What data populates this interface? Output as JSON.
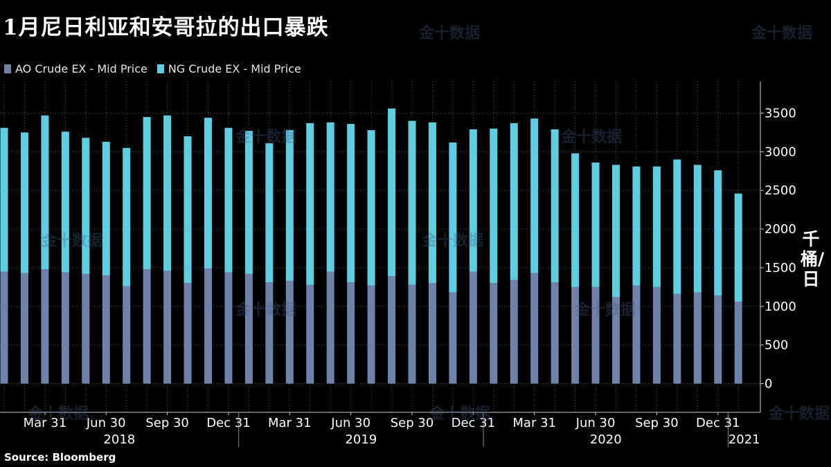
{
  "title": "1月尼日利亚和安哥拉的出口暴跌",
  "source": "Source: Bloomberg",
  "watermark": "金十数据",
  "chart_data": {
    "type": "bar",
    "stacked": true,
    "title": "1月尼日利亚和安哥拉的出口暴跌",
    "ylabel": "千桶/日",
    "ylim": [
      -350,
      3850
    ],
    "yticks": [
      0,
      500,
      1000,
      1500,
      2000,
      2500,
      3000,
      3500
    ],
    "grid": true,
    "legend_position": "top-left",
    "x_tick_labels": [
      {
        "label": "Mar 31",
        "index": 2
      },
      {
        "label": "Jun 30",
        "index": 5
      },
      {
        "label": "Sep 30",
        "index": 8
      },
      {
        "label": "Dec 31",
        "index": 11
      },
      {
        "label": "Mar 31",
        "index": 14
      },
      {
        "label": "Jun 30",
        "index": 17
      },
      {
        "label": "Sep 30",
        "index": 20
      },
      {
        "label": "Dec 31",
        "index": 23
      },
      {
        "label": "Mar 31",
        "index": 26
      },
      {
        "label": "Jun 30",
        "index": 29
      },
      {
        "label": "Sep 30",
        "index": 32
      },
      {
        "label": "Dec 31",
        "index": 35
      }
    ],
    "x_year_labels": [
      {
        "label": "2018",
        "start": 0,
        "end": 11
      },
      {
        "label": "2019",
        "start": 12,
        "end": 23
      },
      {
        "label": "2020",
        "start": 24,
        "end": 35
      },
      {
        "label": "2021",
        "start": 36,
        "end": 36
      }
    ],
    "series": [
      {
        "name": "AO Crude EX - Mid Price",
        "color": "#6e82aa",
        "values": [
          1450,
          1430,
          1480,
          1440,
          1420,
          1400,
          1260,
          1480,
          1460,
          1300,
          1490,
          1440,
          1420,
          1310,
          1330,
          1280,
          1450,
          1310,
          1270,
          1390,
          1280,
          1300,
          1180,
          1450,
          1300,
          1340,
          1430,
          1310,
          1250,
          1250,
          1120,
          1270,
          1250,
          1160,
          1180,
          1140,
          1060
        ]
      },
      {
        "name": "NG Crude EX - Mid Price",
        "color": "#5ecfe2",
        "values": [
          1860,
          1820,
          1990,
          1820,
          1760,
          1730,
          1790,
          1970,
          2010,
          1900,
          1950,
          1870,
          1850,
          1800,
          1950,
          2090,
          1930,
          2050,
          2010,
          2170,
          2120,
          2080,
          1940,
          1840,
          2000,
          2030,
          2000,
          1980,
          1730,
          1610,
          1710,
          1540,
          1560,
          1740,
          1650,
          1620,
          1400
        ]
      }
    ]
  }
}
